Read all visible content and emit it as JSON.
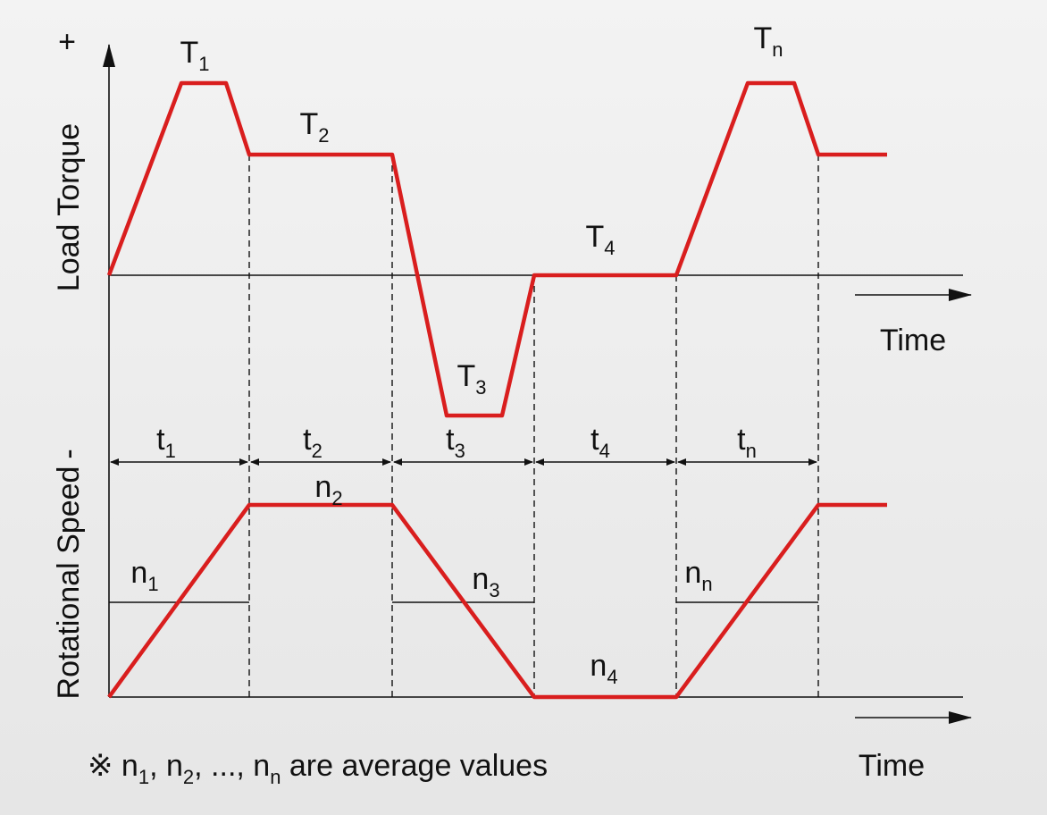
{
  "axes": {
    "torque": {
      "label": "Load Torque",
      "sign": "+",
      "time": "Time"
    },
    "speed": {
      "label": "Rotational Speed",
      "sign": "-",
      "time": "Time"
    }
  },
  "torque_labels": [
    {
      "base": "T",
      "sub": "1"
    },
    {
      "base": "T",
      "sub": "2"
    },
    {
      "base": "T",
      "sub": "3"
    },
    {
      "base": "T",
      "sub": "4"
    },
    {
      "base": "T",
      "sub": "n"
    }
  ],
  "interval_labels": [
    {
      "base": "t",
      "sub": "1"
    },
    {
      "base": "t",
      "sub": "2"
    },
    {
      "base": "t",
      "sub": "3"
    },
    {
      "base": "t",
      "sub": "4"
    },
    {
      "base": "t",
      "sub": "n"
    }
  ],
  "speed_labels": [
    {
      "base": "n",
      "sub": "1"
    },
    {
      "base": "n",
      "sub": "2"
    },
    {
      "base": "n",
      "sub": "3"
    },
    {
      "base": "n",
      "sub": "4"
    },
    {
      "base": "n",
      "sub": "n"
    }
  ],
  "footnote": {
    "segments": [
      "※ n",
      "1",
      ", n",
      "2",
      ", ..., n",
      "n",
      " are average values"
    ]
  }
}
